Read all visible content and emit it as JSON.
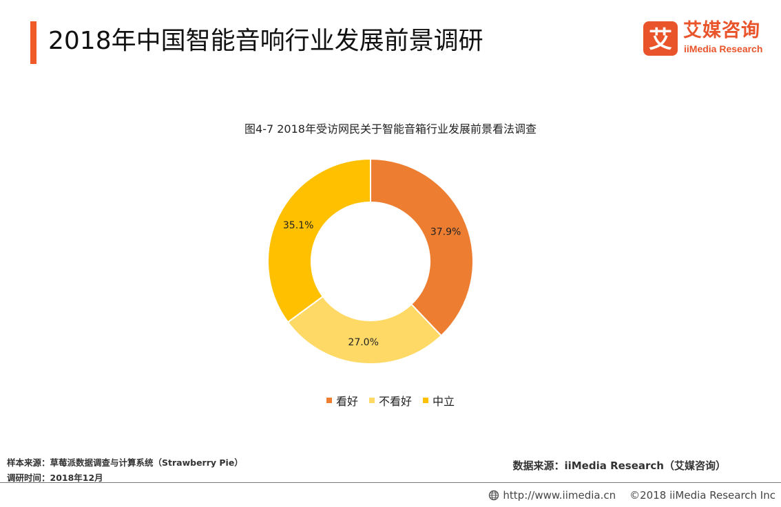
{
  "header": {
    "title": "2018年中国智能音响行业发展前景调研",
    "logo_cn": "艾媒咨询",
    "logo_en": "iiMedia Research",
    "logo_mark": "艾",
    "accent_color": "#ef5a28"
  },
  "chart_data": {
    "type": "pie",
    "title": "图4-7 2018年受访网民关于智能音箱行业发展前景看法调查",
    "donut": true,
    "legend_position": "bottom",
    "slices": [
      {
        "name": "看好",
        "value": 37.9,
        "label": "37.9%",
        "color": "#ed7d31"
      },
      {
        "name": "不看好",
        "value": 27.0,
        "label": "27.0%",
        "color": "#ffd966"
      },
      {
        "name": "中立",
        "value": 35.1,
        "label": "35.1%",
        "color": "#ffc000"
      }
    ]
  },
  "footer": {
    "sample_source": "样本来源：草莓派数据调查与计算系统（Strawberry Pie）",
    "survey_time": "调研时间：2018年12月",
    "data_source": "数据来源：iiMedia Research（艾媒咨询）",
    "url": "http://www.iimedia.cn",
    "copyright": "©2018  iiMedia Research Inc",
    "url_icon": "globe-icon"
  }
}
